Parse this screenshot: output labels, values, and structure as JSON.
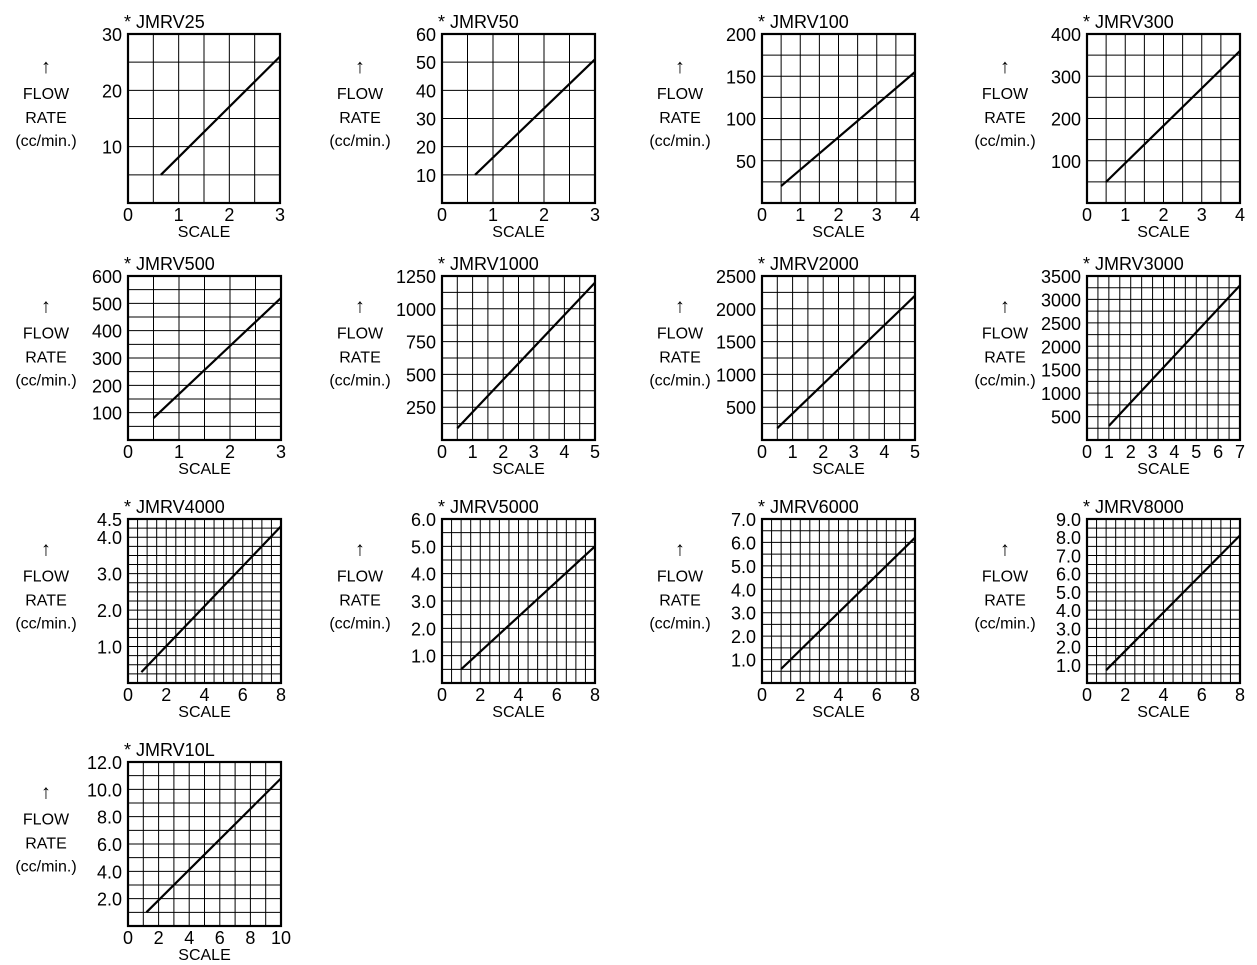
{
  "chart_data": [
    {
      "type": "line",
      "title": "* JMRV25",
      "xlabel": "SCALE",
      "ylabel": [
        "↑",
        "FLOW",
        "RATE",
        "(cc/min.)"
      ],
      "x_ticks": [
        "0",
        "1",
        "2",
        "3"
      ],
      "y_ticks": [
        "10",
        "20",
        "30"
      ],
      "xlim": [
        0,
        3
      ],
      "ylim": [
        0,
        30
      ],
      "x_grid": 6,
      "y_grid": 6,
      "series": [
        {
          "x": [
            0.65,
            3
          ],
          "y": [
            5,
            26
          ]
        }
      ]
    },
    {
      "type": "line",
      "title": "* JMRV50",
      "xlabel": "SCALE",
      "ylabel": [
        "↑",
        "FLOW",
        "RATE",
        "(cc/min.)"
      ],
      "x_ticks": [
        "0",
        "1",
        "2",
        "3"
      ],
      "y_ticks": [
        "10",
        "20",
        "30",
        "40",
        "50",
        "60"
      ],
      "xlim": [
        0,
        3
      ],
      "ylim": [
        0,
        60
      ],
      "x_grid": 6,
      "y_grid": 6,
      "series": [
        {
          "x": [
            0.65,
            3
          ],
          "y": [
            10,
            51
          ]
        }
      ]
    },
    {
      "type": "line",
      "title": "* JMRV100",
      "xlabel": "SCALE",
      "ylabel": [
        "↑",
        "FLOW",
        "RATE",
        "(cc/min.)"
      ],
      "x_ticks": [
        "0",
        "1",
        "2",
        "3",
        "4"
      ],
      "y_ticks": [
        "50",
        "100",
        "150",
        "200"
      ],
      "xlim": [
        0,
        4
      ],
      "ylim": [
        0,
        200
      ],
      "x_grid": 8,
      "y_grid": 8,
      "series": [
        {
          "x": [
            0.5,
            4
          ],
          "y": [
            20,
            155
          ]
        }
      ]
    },
    {
      "type": "line",
      "title": "* JMRV300",
      "xlabel": "SCALE",
      "ylabel": [
        "↑",
        "FLOW",
        "RATE",
        "(cc/min.)"
      ],
      "x_ticks": [
        "0",
        "1",
        "2",
        "3",
        "4"
      ],
      "y_ticks": [
        "100",
        "200",
        "300",
        "400"
      ],
      "xlim": [
        0,
        4
      ],
      "ylim": [
        0,
        400
      ],
      "x_grid": 8,
      "y_grid": 8,
      "series": [
        {
          "x": [
            0.5,
            4
          ],
          "y": [
            50,
            360
          ]
        }
      ]
    },
    {
      "type": "line",
      "title": "* JMRV500",
      "xlabel": "SCALE",
      "ylabel": [
        "↑",
        "FLOW",
        "RATE",
        "(cc/min.)"
      ],
      "x_ticks": [
        "0",
        "1",
        "2",
        "3"
      ],
      "y_ticks": [
        "100",
        "200",
        "300",
        "400",
        "500",
        "600"
      ],
      "xlim": [
        0,
        3
      ],
      "ylim": [
        0,
        600
      ],
      "x_grid": 6,
      "y_grid": 12,
      "series": [
        {
          "x": [
            0.5,
            3
          ],
          "y": [
            80,
            520
          ]
        }
      ]
    },
    {
      "type": "line",
      "title": "* JMRV1000",
      "xlabel": "SCALE",
      "ylabel": [
        "↑",
        "FLOW",
        "RATE",
        "(cc/min.)"
      ],
      "x_ticks": [
        "0",
        "1",
        "2",
        "3",
        "4",
        "5"
      ],
      "y_ticks": [
        "250",
        "500",
        "750",
        "1000",
        "1250"
      ],
      "xlim": [
        0,
        5
      ],
      "ylim": [
        0,
        1250
      ],
      "x_grid": 10,
      "y_grid": 10,
      "series": [
        {
          "x": [
            0.5,
            5
          ],
          "y": [
            90,
            1200
          ]
        }
      ]
    },
    {
      "type": "line",
      "title": "* JMRV2000",
      "xlabel": "SCALE",
      "ylabel": [
        "↑",
        "FLOW",
        "RATE",
        "(cc/min.)"
      ],
      "x_ticks": [
        "0",
        "1",
        "2",
        "3",
        "4",
        "5"
      ],
      "y_ticks": [
        "500",
        "1000",
        "1500",
        "2000",
        "2500"
      ],
      "xlim": [
        0,
        5
      ],
      "ylim": [
        0,
        2500
      ],
      "x_grid": 10,
      "y_grid": 10,
      "series": [
        {
          "x": [
            0.5,
            5
          ],
          "y": [
            180,
            2200
          ]
        }
      ]
    },
    {
      "type": "line",
      "title": "* JMRV3000",
      "xlabel": "SCALE",
      "ylabel": [
        "↑",
        "FLOW",
        "RATE",
        "(cc/min.)"
      ],
      "x_ticks": [
        "0",
        "1",
        "2",
        "3",
        "4",
        "5",
        "6",
        "7"
      ],
      "y_ticks": [
        "500",
        "1000",
        "1500",
        "2000",
        "2500",
        "3000",
        "3500"
      ],
      "xlim": [
        0,
        7
      ],
      "ylim": [
        0,
        3500
      ],
      "x_grid": 14,
      "y_grid": 14,
      "series": [
        {
          "x": [
            1,
            7
          ],
          "y": [
            300,
            3300
          ]
        }
      ]
    },
    {
      "type": "line",
      "title": "* JMRV4000",
      "xlabel": "SCALE",
      "ylabel": [
        "↑",
        "FLOW",
        "RATE",
        "(cc/min.)"
      ],
      "x_ticks": [
        "0",
        "2",
        "4",
        "6",
        "8"
      ],
      "y_ticks": [
        "1.0",
        "2.0",
        "3.0",
        "4.0",
        "4.5"
      ],
      "y_tick_values": [
        1,
        2,
        3,
        4,
        4.5
      ],
      "xlim": [
        0,
        8
      ],
      "ylim": [
        0,
        4.5
      ],
      "x_grid": 16,
      "y_grid": 18,
      "series": [
        {
          "x": [
            0.7,
            8
          ],
          "y": [
            0.3,
            4.3
          ]
        }
      ]
    },
    {
      "type": "line",
      "title": "* JMRV5000",
      "xlabel": "SCALE",
      "ylabel": [
        "↑",
        "FLOW",
        "RATE",
        "(cc/min.)"
      ],
      "x_ticks": [
        "0",
        "2",
        "4",
        "6",
        "8"
      ],
      "y_ticks": [
        "1.0",
        "2.0",
        "3.0",
        "4.0",
        "5.0",
        "6.0"
      ],
      "xlim": [
        0,
        8
      ],
      "ylim": [
        0,
        6
      ],
      "x_grid": 16,
      "y_grid": 12,
      "series": [
        {
          "x": [
            1,
            8
          ],
          "y": [
            0.5,
            5
          ]
        }
      ]
    },
    {
      "type": "line",
      "title": "* JMRV6000",
      "xlabel": "SCALE",
      "ylabel": [
        "↑",
        "FLOW",
        "RATE",
        "(cc/min.)"
      ],
      "x_ticks": [
        "0",
        "2",
        "4",
        "6",
        "8"
      ],
      "y_ticks": [
        "1.0",
        "2.0",
        "3.0",
        "4.0",
        "5.0",
        "6.0",
        "7.0"
      ],
      "xlim": [
        0,
        8
      ],
      "ylim": [
        0,
        7
      ],
      "x_grid": 16,
      "y_grid": 14,
      "series": [
        {
          "x": [
            1,
            8
          ],
          "y": [
            0.6,
            6.2
          ]
        }
      ]
    },
    {
      "type": "line",
      "title": "* JMRV8000",
      "xlabel": "SCALE",
      "ylabel": [
        "↑",
        "FLOW",
        "RATE",
        "(cc/min.)"
      ],
      "x_ticks": [
        "0",
        "2",
        "4",
        "6",
        "8"
      ],
      "y_ticks": [
        "1.0",
        "2.0",
        "3.0",
        "4.0",
        "5.0",
        "6.0",
        "7.0",
        "8.0",
        "9.0"
      ],
      "xlim": [
        0,
        8
      ],
      "ylim": [
        0,
        9
      ],
      "x_grid": 16,
      "y_grid": 18,
      "series": [
        {
          "x": [
            1,
            8
          ],
          "y": [
            0.7,
            8.1
          ]
        }
      ]
    },
    {
      "type": "line",
      "title": "* JMRV10L",
      "xlabel": "SCALE",
      "ylabel": [
        "↑",
        "FLOW",
        "RATE",
        "(cc/min.)"
      ],
      "x_ticks": [
        "0",
        "2",
        "4",
        "6",
        "8",
        "10"
      ],
      "y_ticks": [
        "2.0",
        "4.0",
        "6.0",
        "8.0",
        "10.0",
        "12.0"
      ],
      "xlim": [
        0,
        10
      ],
      "ylim": [
        0,
        12
      ],
      "x_grid": 10,
      "y_grid": 12,
      "series": [
        {
          "x": [
            1.2,
            10
          ],
          "y": [
            1,
            10.8
          ]
        }
      ]
    }
  ]
}
